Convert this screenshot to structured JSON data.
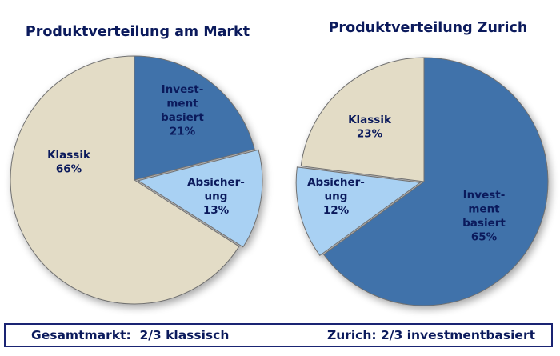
{
  "chart_data": [
    {
      "type": "pie",
      "title": "Produktverteilung am Markt",
      "slices": [
        {
          "label": [
            "Invest-",
            "ment",
            "basiert"
          ],
          "value": 21,
          "value_label": "21%",
          "color": "#3f72aa"
        },
        {
          "label": [
            "Absicher-",
            "ung"
          ],
          "value": 13,
          "value_label": "13%",
          "color": "#a9d1f3"
        },
        {
          "label": [
            "Klassik"
          ],
          "value": 66,
          "value_label": "66%",
          "color": "#e3dcc6"
        }
      ]
    },
    {
      "type": "pie",
      "title": "Produktverteilung Zurich",
      "slices": [
        {
          "label": [
            "Invest-",
            "ment",
            "basiert"
          ],
          "value": 65,
          "value_label": "65%",
          "color": "#3f72aa"
        },
        {
          "label": [
            "Absicher-",
            "ung"
          ],
          "value": 12,
          "value_label": "12%",
          "color": "#a9d1f3"
        },
        {
          "label": [
            "Klassik"
          ],
          "value": 23,
          "value_label": "23%",
          "color": "#e3dcc6"
        }
      ]
    }
  ],
  "footer": {
    "left": "Gesamtmarkt:  2/3 klassisch",
    "right": "Zurich: 2/3 investmentbasiert"
  },
  "colors": {
    "title": "#0b1a5c",
    "label": "#0b1a5c",
    "outline": "#6f6f6f"
  }
}
